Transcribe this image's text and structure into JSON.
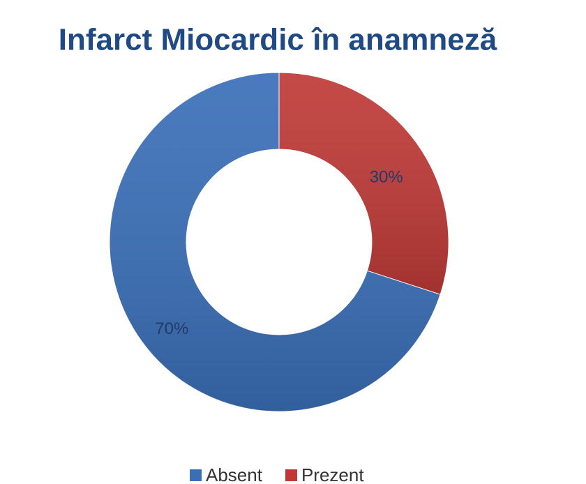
{
  "chart_data": {
    "type": "donut",
    "title": "Infarct Miocardic în anamneză",
    "categories": [
      "Absent",
      "Prezent"
    ],
    "values": [
      70,
      30
    ],
    "value_labels": [
      "70%",
      "30%"
    ],
    "colors": [
      "#3a6fb8",
      "#bf3a37"
    ],
    "legend": "bottom"
  }
}
